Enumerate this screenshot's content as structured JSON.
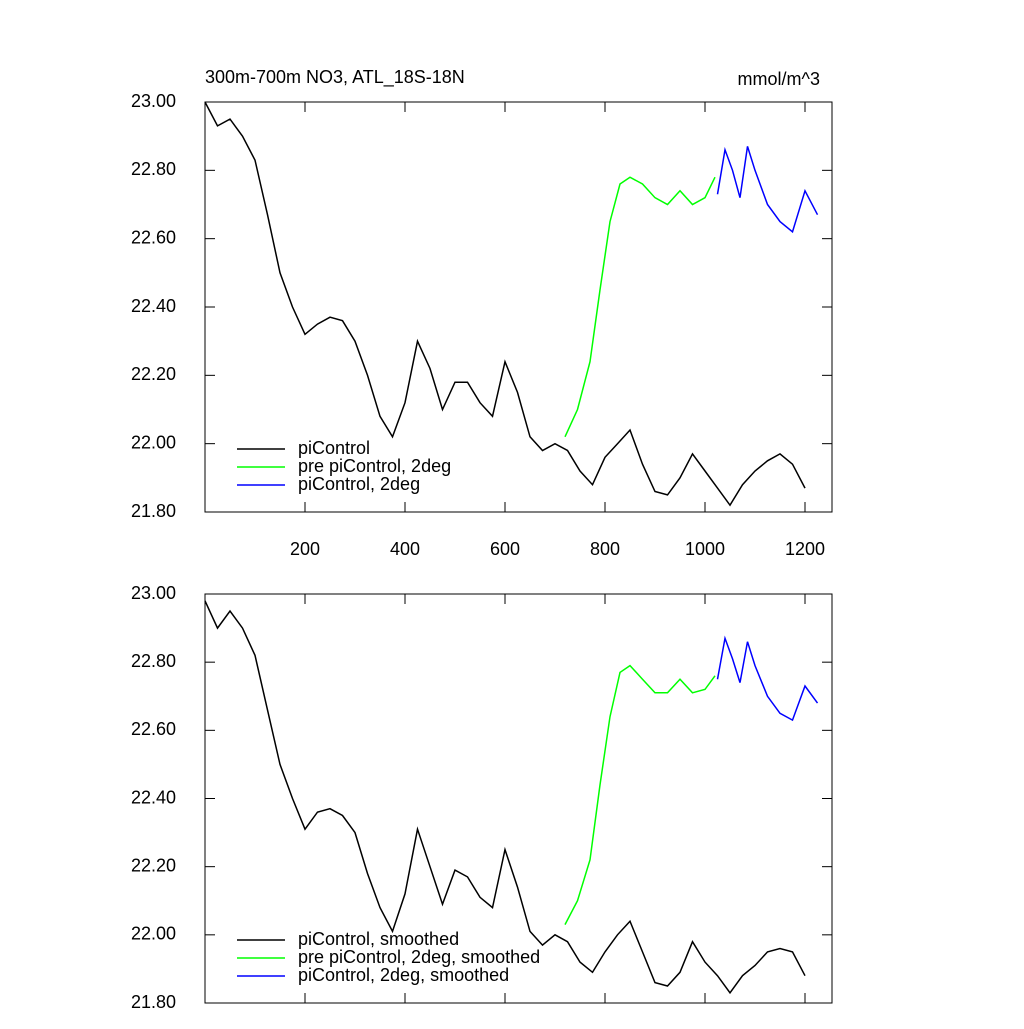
{
  "chart_data": [
    {
      "type": "line",
      "title": "300m-700m NO3, ATL_18S-18N",
      "units": "mmol/m^3",
      "xlim": [
        0,
        1254
      ],
      "xticks": [
        200,
        400,
        600,
        800,
        1000,
        1200
      ],
      "xtick_labels": true,
      "ylim": [
        21.8,
        23.0
      ],
      "yticks": [
        {
          "value": 21.8,
          "label": "21.80"
        },
        {
          "value": 22.0,
          "label": "22.00"
        },
        {
          "value": 22.2,
          "label": "22.20"
        },
        {
          "value": 22.4,
          "label": "22.40"
        },
        {
          "value": 22.6,
          "label": "22.60"
        },
        {
          "value": 22.8,
          "label": "22.80"
        },
        {
          "value": 23.0,
          "label": "23.00"
        }
      ],
      "legend": "lower-left",
      "series": [
        {
          "name": "piControl",
          "color": "#000000",
          "x": [
            0,
            25,
            50,
            75,
            100,
            125,
            150,
            175,
            200,
            225,
            250,
            275,
            300,
            325,
            350,
            375,
            400,
            425,
            450,
            475,
            500,
            525,
            550,
            575,
            600,
            625,
            650,
            675,
            700,
            725,
            750,
            775,
            800,
            825,
            850,
            875,
            900,
            925,
            950,
            975,
            1000,
            1025,
            1050,
            1075,
            1100,
            1125,
            1150,
            1175,
            1200
          ],
          "values": [
            23.0,
            22.93,
            22.95,
            22.9,
            22.83,
            22.67,
            22.5,
            22.4,
            22.32,
            22.35,
            22.37,
            22.36,
            22.3,
            22.2,
            22.08,
            22.02,
            22.12,
            22.3,
            22.22,
            22.1,
            22.18,
            22.18,
            22.12,
            22.08,
            22.24,
            22.15,
            22.02,
            21.98,
            22.0,
            21.98,
            21.92,
            21.88,
            21.96,
            22.0,
            22.04,
            21.94,
            21.86,
            21.85,
            21.9,
            21.97,
            21.92,
            21.87,
            21.82,
            21.88,
            21.92,
            21.95,
            21.97,
            21.94,
            21.87
          ]
        },
        {
          "name": "pre piControl, 2deg",
          "color": "#00ff00",
          "x": [
            720,
            745,
            770,
            790,
            810,
            830,
            850,
            875,
            900,
            925,
            950,
            975,
            1000,
            1020
          ],
          "values": [
            22.02,
            22.1,
            22.24,
            22.45,
            22.65,
            22.76,
            22.78,
            22.76,
            22.72,
            22.7,
            22.74,
            22.7,
            22.72,
            22.78
          ]
        },
        {
          "name": "piControl, 2deg",
          "color": "#0000ff",
          "x": [
            1025,
            1040,
            1055,
            1070,
            1085,
            1100,
            1125,
            1150,
            1175,
            1200,
            1225
          ],
          "values": [
            22.73,
            22.86,
            22.8,
            22.72,
            22.87,
            22.8,
            22.7,
            22.65,
            22.62,
            22.74,
            22.67
          ]
        }
      ]
    },
    {
      "type": "line",
      "xlim": [
        0,
        1254
      ],
      "xticks": [
        200,
        400,
        600,
        800,
        1000,
        1200
      ],
      "xtick_labels": false,
      "ylim": [
        21.8,
        23.0
      ],
      "yticks": [
        {
          "value": 21.8,
          "label": "21.80"
        },
        {
          "value": 22.0,
          "label": "22.00"
        },
        {
          "value": 22.2,
          "label": "22.20"
        },
        {
          "value": 22.4,
          "label": "22.40"
        },
        {
          "value": 22.6,
          "label": "22.60"
        },
        {
          "value": 22.8,
          "label": "22.80"
        },
        {
          "value": 23.0,
          "label": "23.00"
        }
      ],
      "legend": "lower-left",
      "series": [
        {
          "name": "piControl, smoothed",
          "color": "#000000",
          "x": [
            0,
            25,
            50,
            75,
            100,
            125,
            150,
            175,
            200,
            225,
            250,
            275,
            300,
            325,
            350,
            375,
            400,
            425,
            450,
            475,
            500,
            525,
            550,
            575,
            600,
            625,
            650,
            675,
            700,
            725,
            750,
            775,
            800,
            825,
            850,
            875,
            900,
            925,
            950,
            975,
            1000,
            1025,
            1050,
            1075,
            1100,
            1125,
            1150,
            1175,
            1200
          ],
          "values": [
            22.98,
            22.9,
            22.95,
            22.9,
            22.82,
            22.66,
            22.5,
            22.4,
            22.31,
            22.36,
            22.37,
            22.35,
            22.3,
            22.18,
            22.08,
            22.01,
            22.12,
            22.31,
            22.2,
            22.09,
            22.19,
            22.17,
            22.11,
            22.08,
            22.25,
            22.14,
            22.01,
            21.97,
            22.0,
            21.98,
            21.92,
            21.89,
            21.95,
            22.0,
            22.04,
            21.95,
            21.86,
            21.85,
            21.89,
            21.98,
            21.92,
            21.88,
            21.83,
            21.88,
            21.91,
            21.95,
            21.96,
            21.95,
            21.88
          ]
        },
        {
          "name": "pre piControl, 2deg, smoothed",
          "color": "#00ff00",
          "x": [
            720,
            745,
            770,
            790,
            810,
            830,
            850,
            875,
            900,
            925,
            950,
            975,
            1000,
            1020
          ],
          "values": [
            22.03,
            22.1,
            22.22,
            22.44,
            22.64,
            22.77,
            22.79,
            22.75,
            22.71,
            22.71,
            22.75,
            22.71,
            22.72,
            22.76
          ]
        },
        {
          "name": "piControl, 2deg, smoothed",
          "color": "#0000ff",
          "x": [
            1025,
            1040,
            1055,
            1070,
            1085,
            1100,
            1125,
            1150,
            1175,
            1200,
            1225
          ],
          "values": [
            22.75,
            22.87,
            22.81,
            22.74,
            22.86,
            22.79,
            22.7,
            22.65,
            22.63,
            22.73,
            22.68
          ]
        }
      ]
    }
  ]
}
